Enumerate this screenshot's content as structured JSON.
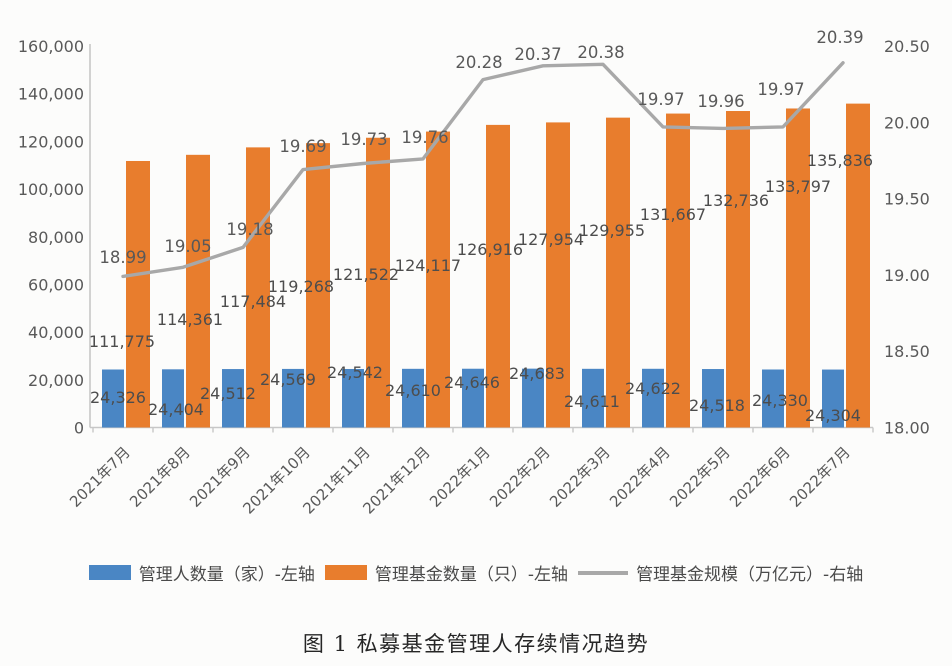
{
  "caption": "图 1 私募基金管理人存续情况趋势",
  "chart_data": {
    "type": "combo-bar-line",
    "title": "",
    "categories": [
      "2021年7月",
      "2021年8月",
      "2021年9月",
      "2021年10月",
      "2021年11月",
      "2021年12月",
      "2022年1月",
      "2022年2月",
      "2022年3月",
      "2022年4月",
      "2022年5月",
      "2022年6月",
      "2022年7月"
    ],
    "series": [
      {
        "name": "管理人数量（家）-左轴",
        "type": "bar",
        "axis": "left",
        "color": "#4A86C4",
        "values": [
          24326,
          24404,
          24512,
          24569,
          24542,
          24610,
          24646,
          24683,
          24611,
          24622,
          24518,
          24330,
          24304
        ]
      },
      {
        "name": "管理基金数量（只）-左轴",
        "type": "bar",
        "axis": "left",
        "color": "#E87D2D",
        "values": [
          111775,
          114361,
          117484,
          119268,
          121522,
          124117,
          126916,
          127954,
          129955,
          131667,
          132736,
          133797,
          135836
        ]
      },
      {
        "name": "管理基金规模（万亿元）-右轴",
        "type": "line",
        "axis": "right",
        "color": "#A8A8A8",
        "values": [
          18.99,
          19.05,
          19.18,
          19.69,
          19.73,
          19.76,
          20.28,
          20.37,
          20.38,
          19.97,
          19.96,
          19.97,
          20.39
        ]
      }
    ],
    "left_axis": {
      "min": 0,
      "max": 160000,
      "step": 20000
    },
    "right_axis": {
      "min": 18.0,
      "max": 20.5,
      "step": 0.5
    },
    "grid": false,
    "legend_position": "bottom",
    "text_color": "#595959",
    "axis_line_color": "#c7c7c7"
  }
}
